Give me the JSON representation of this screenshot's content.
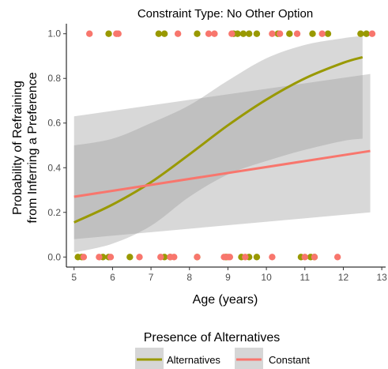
{
  "chart_data": {
    "type": "scatter",
    "title": "Constraint Type: No Other Option",
    "xlabel": "Age (years)",
    "ylabel_lines": [
      "Probability of Refraining",
      "from Inferring a Preference"
    ],
    "xlim": [
      4.8,
      13.1
    ],
    "ylim": [
      -0.045,
      1.045
    ],
    "x_ticks": [
      5,
      6,
      7,
      8,
      9,
      10,
      11,
      12,
      13
    ],
    "x_tick_labels": [
      "5",
      "6",
      "7",
      "8",
      "9",
      "10",
      "11",
      "12",
      "13"
    ],
    "y_ticks": [
      0.0,
      0.2,
      0.4,
      0.6,
      0.8,
      1.0
    ],
    "y_tick_labels": [
      "0.0",
      "0.2",
      "0.4",
      "0.6",
      "0.8",
      "1.0"
    ],
    "grid": false,
    "legend": {
      "title": "Presence of Alternatives",
      "position": "bottom",
      "entries": [
        "Alternatives",
        "Constant"
      ]
    },
    "series": [
      {
        "name": "Alternatives",
        "color": "#999900",
        "points_y1": [
          5.9,
          7.2,
          7.35,
          8.2,
          9.15,
          9.25,
          9.4,
          9.55,
          9.75,
          10.3,
          10.6,
          11.2,
          11.6,
          12.45,
          12.6
        ],
        "points_y0": [
          5.1,
          5.2,
          5.75,
          5.9,
          6.45,
          7.35,
          7.5,
          8.2,
          8.95,
          9.35,
          9.55,
          9.75,
          10.9,
          11.15,
          11.25
        ],
        "fit": {
          "x": [
            5.0,
            6.0,
            7.0,
            8.0,
            9.0,
            10.0,
            11.0,
            12.0,
            12.5
          ],
          "y": [
            0.155,
            0.235,
            0.335,
            0.46,
            0.59,
            0.705,
            0.8,
            0.87,
            0.895
          ],
          "lower": [
            0.02,
            0.06,
            0.14,
            0.27,
            0.37,
            0.43,
            0.48,
            0.52,
            0.53
          ],
          "upper": [
            0.5,
            0.53,
            0.6,
            0.68,
            0.79,
            0.89,
            0.95,
            0.98,
            0.99
          ]
        }
      },
      {
        "name": "Constant",
        "color": "#f8766d",
        "points_y1": [
          5.4,
          6.1,
          6.15,
          7.7,
          8.5,
          8.65,
          9.1,
          10.15,
          10.35,
          10.8,
          11.45,
          12.75
        ],
        "points_y0": [
          5.25,
          5.65,
          5.95,
          6.7,
          7.25,
          7.5,
          7.6,
          8.2,
          8.9,
          9.0,
          9.05,
          9.45,
          10.15,
          11.0,
          11.25,
          11.85
        ],
        "fit": {
          "x": [
            5.0,
            12.7
          ],
          "y": [
            0.27,
            0.475
          ],
          "lower": [
            0.08,
            0.2
          ],
          "upper": [
            0.63,
            0.82
          ]
        }
      }
    ]
  }
}
